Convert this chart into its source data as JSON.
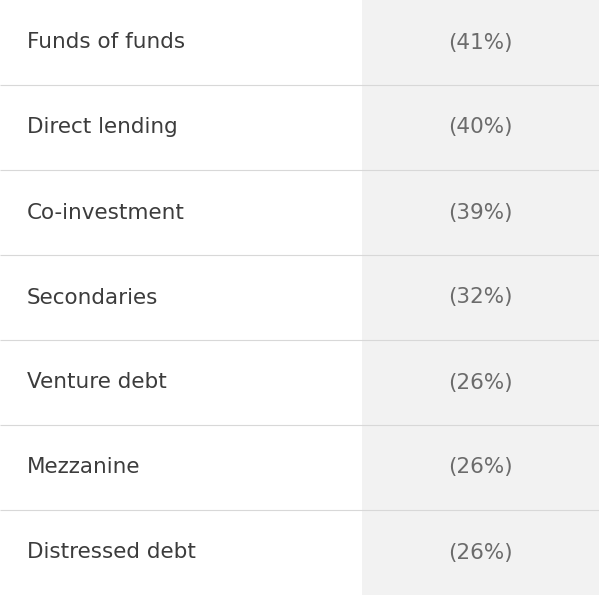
{
  "rows": [
    {
      "label": "Funds of funds",
      "value": "(41%)"
    },
    {
      "label": "Direct lending",
      "value": "(40%)"
    },
    {
      "label": "Co-investment",
      "value": "(39%)"
    },
    {
      "label": "Secondaries",
      "value": "(32%)"
    },
    {
      "label": "Venture debt",
      "value": "(26%)"
    },
    {
      "label": "Mezzanine",
      "value": "(26%)"
    },
    {
      "label": "Distressed debt",
      "value": "(26%)"
    }
  ],
  "background_white": "#ffffff",
  "background_gray": "#f2f2f2",
  "text_color_label": "#3c3c3c",
  "text_color_value": "#6b6b6b",
  "divider_color": "#d8d8d8",
  "col_split": 0.605,
  "font_size_label": 15.5,
  "font_size_value": 15.5,
  "fig_width": 5.99,
  "fig_height": 5.95,
  "dpi": 100
}
